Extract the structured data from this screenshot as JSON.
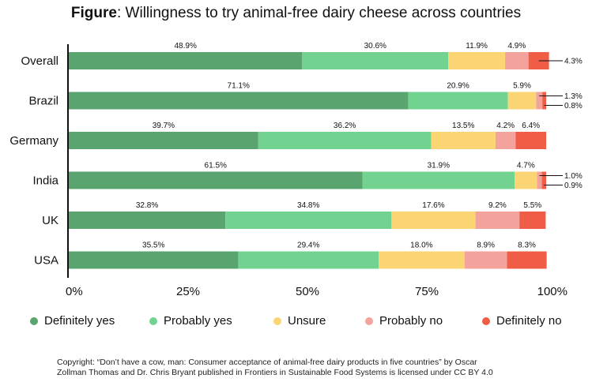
{
  "title": {
    "bold": "Figure",
    "rest": ": Willingness to try animal-free dairy cheese across countries"
  },
  "colors": {
    "definitely_yes": "#5aa46f",
    "probably_yes": "#72d391",
    "unsure": "#fbd474",
    "probably_no": "#f4a39c",
    "definitely_no": "#f05d47"
  },
  "chart_data": {
    "type": "bar",
    "orientation": "horizontal-stacked",
    "title": "Figure: Willingness to try animal-free dairy cheese across countries",
    "categories": [
      "Overall",
      "Brazil",
      "Germany",
      "India",
      "UK",
      "USA"
    ],
    "series": [
      {
        "name": "Definitely yes",
        "key": "definitely_yes",
        "values": [
          48.9,
          71.1,
          39.7,
          61.5,
          32.8,
          35.5
        ],
        "labels": [
          "48.9%",
          "71.1%",
          "39.7%",
          "61.5%",
          "32.8%",
          "35.5%"
        ]
      },
      {
        "name": "Probably yes",
        "key": "probably_yes",
        "values": [
          30.6,
          20.9,
          36.2,
          31.9,
          34.8,
          29.4
        ],
        "labels": [
          "30.6%",
          "20.9%",
          "36.2%",
          "31.9%",
          "34.8%",
          "29.4%"
        ]
      },
      {
        "name": "Unsure",
        "key": "unsure",
        "values": [
          11.9,
          5.9,
          13.5,
          4.7,
          17.6,
          18.0
        ],
        "labels": [
          "11.9%",
          "5.9%",
          "13.5%",
          "4.7%",
          "17.6%",
          "18.0%"
        ]
      },
      {
        "name": "Probably no",
        "key": "probably_no",
        "values": [
          4.9,
          1.3,
          4.2,
          1.0,
          9.2,
          8.9
        ],
        "labels": [
          "4.9%",
          "1.3%",
          "4.2%",
          "1.0%",
          "9.2%",
          "8.9%"
        ]
      },
      {
        "name": "Definitely no",
        "key": "definitely_no",
        "values": [
          4.3,
          0.8,
          6.4,
          0.9,
          5.5,
          8.3
        ],
        "labels": [
          "4.3%",
          "0.8%",
          "6.4%",
          "0.9%",
          "5.5%",
          "8.3%"
        ]
      }
    ],
    "xlim": [
      0,
      100
    ],
    "xticks": [
      "0%",
      "25%",
      "50%",
      "75%",
      "100%"
    ],
    "xlabel": "",
    "ylabel": "",
    "grid": false,
    "legend": "bottom"
  },
  "footer": {
    "line1": "Copyright: “Don’t have a cow, man: Consumer acceptance of animal-free dairy products in five countries” by Oscar",
    "line2": "Zollman Thomas and Dr. Chris Bryant published in Frontiers in Sustainable Food Systems is licensed under CC BY 4.0"
  }
}
